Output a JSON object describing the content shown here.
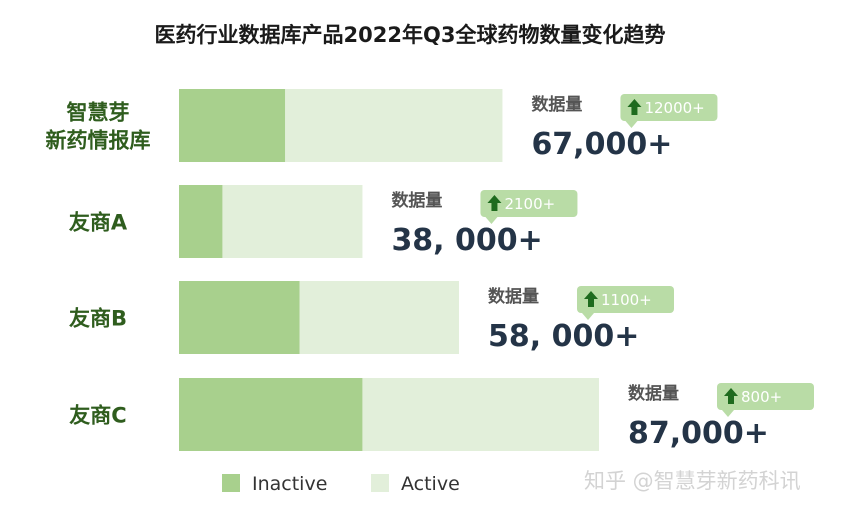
{
  "chart_data": {
    "type": "bar",
    "title": "医药行业数据库产品2022年Q3全球药物数量变化趋势",
    "categories": [
      [
        "智慧芽",
        "新药情报库"
      ],
      [
        "友商A"
      ],
      [
        "友商B"
      ],
      [
        "友商C"
      ]
    ],
    "series": [
      {
        "name": "Inactive",
        "values": [
          22000,
          9000,
          25000,
          38000
        ]
      },
      {
        "name": "Active",
        "values": [
          45000,
          29000,
          33000,
          49000
        ]
      }
    ],
    "totals_label": "数据量",
    "totals": [
      "67,000+",
      "38, 000+",
      "58, 000+",
      "87,000+"
    ],
    "increments": [
      "12000+",
      "2100+",
      "1100+",
      "800+"
    ],
    "stacked": true,
    "orientation": "horizontal",
    "xlim": [
      0,
      87000
    ],
    "legend_position": "bottom",
    "grid": false,
    "colors": {
      "Inactive": "#a8d08d",
      "Active": "#e2efda",
      "badge": "#b9dca6",
      "arrow": "#1e6b1e"
    }
  },
  "watermark": "知乎 @智慧芽新药科讯"
}
